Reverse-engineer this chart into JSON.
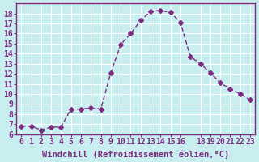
{
  "x": [
    0,
    1,
    2,
    3,
    4,
    5,
    6,
    7,
    8,
    9,
    10,
    11,
    12,
    13,
    14,
    15,
    16,
    17,
    18,
    19,
    20,
    21,
    22,
    23
  ],
  "y": [
    6.8,
    6.8,
    6.4,
    6.7,
    6.7,
    8.5,
    8.5,
    8.6,
    8.5,
    12.1,
    14.9,
    16.0,
    17.3,
    18.2,
    18.3,
    18.1,
    17.1,
    13.7,
    13.0,
    12.1,
    11.1,
    10.5,
    10.0,
    9.4
  ],
  "line_color": "#7f2b7f",
  "marker": "D",
  "marker_size": 3,
  "bg_color": "#c8eef0",
  "grid_color": "#ffffff",
  "xlabel": "Windchill (Refroidissement éolien,°C)",
  "ylabel": "",
  "xlim": [
    -0.5,
    23.5
  ],
  "ylim": [
    6,
    19
  ],
  "yticks": [
    6,
    7,
    8,
    9,
    10,
    11,
    12,
    13,
    14,
    15,
    16,
    17,
    18
  ],
  "xticks": [
    0,
    1,
    2,
    3,
    4,
    5,
    6,
    7,
    8,
    9,
    10,
    11,
    12,
    13,
    14,
    15,
    16,
    18,
    19,
    20,
    21,
    22,
    23
  ],
  "tick_label_fontsize": 7,
  "xlabel_fontsize": 7.5,
  "border_color": "#7f2b7f"
}
